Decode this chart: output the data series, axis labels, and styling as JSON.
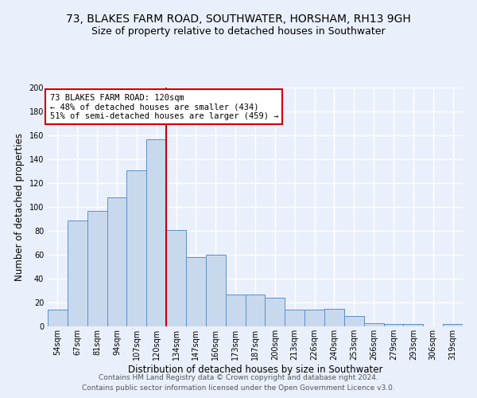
{
  "title1": "73, BLAKES FARM ROAD, SOUTHWATER, HORSHAM, RH13 9GH",
  "title2": "Size of property relative to detached houses in Southwater",
  "xlabel": "Distribution of detached houses by size in Southwater",
  "ylabel": "Number of detached properties",
  "categories": [
    "54sqm",
    "67sqm",
    "81sqm",
    "94sqm",
    "107sqm",
    "120sqm",
    "134sqm",
    "147sqm",
    "160sqm",
    "173sqm",
    "187sqm",
    "200sqm",
    "213sqm",
    "226sqm",
    "240sqm",
    "253sqm",
    "266sqm",
    "279sqm",
    "293sqm",
    "306sqm",
    "319sqm"
  ],
  "values": [
    14,
    89,
    97,
    108,
    131,
    157,
    81,
    58,
    60,
    27,
    27,
    24,
    14,
    14,
    15,
    9,
    3,
    2,
    2,
    0,
    2
  ],
  "bar_color": "#c9d9ed",
  "bar_edge_color": "#5b8fc9",
  "ref_line_index": 5,
  "ref_line_color": "#cc0000",
  "annotation_text": "73 BLAKES FARM ROAD: 120sqm\n← 48% of detached houses are smaller (434)\n51% of semi-detached houses are larger (459) →",
  "annotation_box_color": "#ffffff",
  "annotation_box_edge_color": "#cc0000",
  "ylim": [
    0,
    200
  ],
  "yticks": [
    0,
    20,
    40,
    60,
    80,
    100,
    120,
    140,
    160,
    180,
    200
  ],
  "footer1": "Contains HM Land Registry data © Crown copyright and database right 2024.",
  "footer2": "Contains public sector information licensed under the Open Government Licence v3.0.",
  "bg_color": "#eaf0fb",
  "plot_bg_color": "#eaf0fb",
  "grid_color": "#ffffff",
  "title1_fontsize": 10,
  "title2_fontsize": 9,
  "xlabel_fontsize": 8.5,
  "ylabel_fontsize": 8.5,
  "tick_fontsize": 7,
  "annotation_fontsize": 7.5,
  "footer_fontsize": 6.5
}
